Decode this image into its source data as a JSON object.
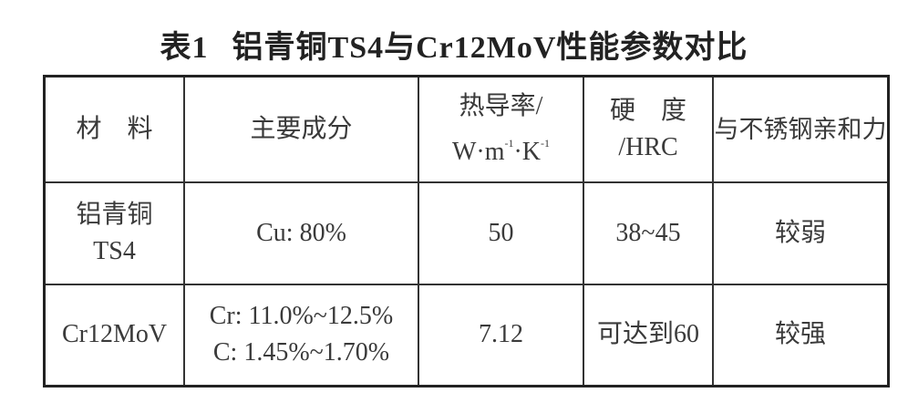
{
  "title": {
    "label": "表1",
    "text": "铝青铜TS4与Cr12MoV性能参数对比"
  },
  "table": {
    "headers": [
      {
        "lines": [
          "材　料"
        ]
      },
      {
        "lines": [
          "主要成分"
        ]
      },
      {
        "lines": [
          "热导率/"
        ],
        "unit": {
          "w": "W·m",
          "exp1": "-1",
          "k": "·K",
          "exp2": "-1"
        }
      },
      {
        "lines": [
          "硬　度",
          "/HRC"
        ]
      },
      {
        "lines": [
          "与不锈钢亲和力"
        ]
      }
    ],
    "rows": [
      {
        "material": [
          "铝青铜",
          "TS4"
        ],
        "composition": [
          "Cu: 80%"
        ],
        "thermal_conductivity": "50",
        "hardness": "38~45",
        "affinity": "较弱"
      },
      {
        "material": [
          "Cr12MoV"
        ],
        "composition": [
          "Cr: 11.0%~12.5%",
          "C: 1.45%~1.70%"
        ],
        "thermal_conductivity": "7.12",
        "hardness": "可达到60",
        "affinity": "较强"
      }
    ]
  }
}
